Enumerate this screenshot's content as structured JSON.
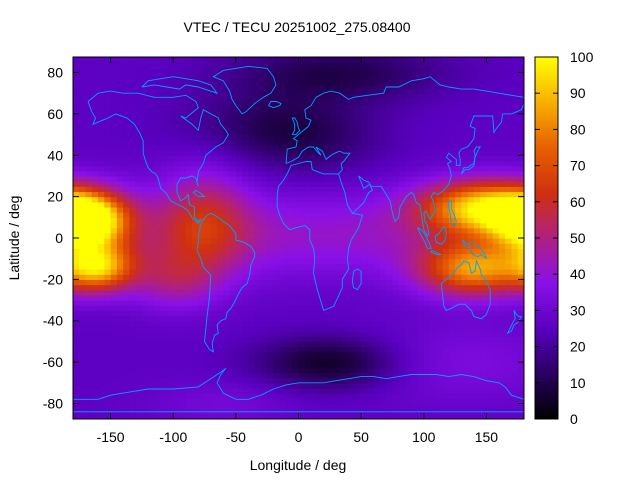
{
  "chart_data": {
    "type": "heatmap",
    "title": "VTEC / TECU 20251002_275.08400",
    "xlabel": "Longitude / deg",
    "ylabel": "Latitude / deg",
    "xlim": [
      -180,
      180
    ],
    "ylim": [
      -87.5,
      87.5
    ],
    "xticks": [
      -150,
      -100,
      -50,
      0,
      50,
      100,
      150
    ],
    "yticks": [
      -80,
      -60,
      -40,
      -20,
      0,
      20,
      40,
      60,
      80
    ],
    "colorbar": {
      "range": [
        0,
        100
      ],
      "ticks": [
        0,
        10,
        20,
        30,
        40,
        50,
        60,
        70,
        80,
        90,
        100
      ],
      "palette": [
        "#000000",
        "#2a0060",
        "#5a00c0",
        "#8a10e8",
        "#b02080",
        "#d03010",
        "#e86000",
        "#f8b000",
        "#ffff00"
      ]
    },
    "grid_resolution_deg": {
      "lon": 5,
      "lat": 2.5
    },
    "features": [
      {
        "name": "equatorial anomaly crest, Pacific",
        "lon": -170,
        "lat": 8,
        "peak_tecu": 96
      },
      {
        "name": "equatorial anomaly crest, Pacific south",
        "lon": -160,
        "lat": -14,
        "peak_tecu": 82
      },
      {
        "name": "equatorial anomaly crest, West Pacific north",
        "lon": 150,
        "lat": 15,
        "peak_tecu": 90
      },
      {
        "name": "equatorial anomaly crest, West Pacific south",
        "lon": 140,
        "lat": -15,
        "peak_tecu": 82
      },
      {
        "name": "southern mid-latitude trough",
        "lon": 25,
        "lat": -60,
        "peak_tecu": 5
      },
      {
        "name": "northern polar minimum",
        "lon": 40,
        "lat": 85,
        "peak_tecu": 10
      }
    ],
    "overlay": "coastlines",
    "coastline_color": "#00a0ff"
  }
}
